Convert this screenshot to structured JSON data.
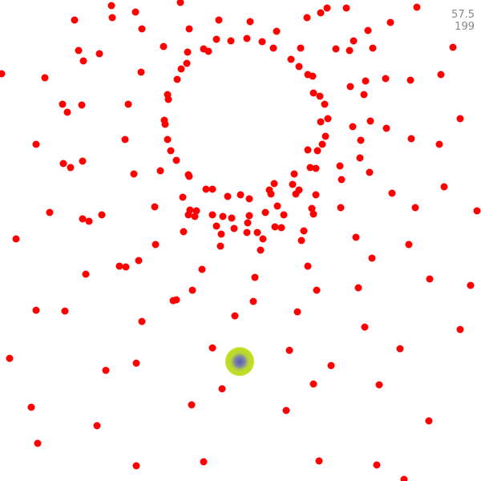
{
  "hud": {
    "value_a": "57.5",
    "value_b": "199"
  },
  "colors": {
    "background": "#ffffff",
    "bullet": "#ff0000",
    "player_outer": "#c6e11e",
    "player_inner": "#5b57b3",
    "hud_text": "#888888"
  },
  "icons": {
    "bullet": "red-dot-icon",
    "player": "player-orb-icon"
  }
}
